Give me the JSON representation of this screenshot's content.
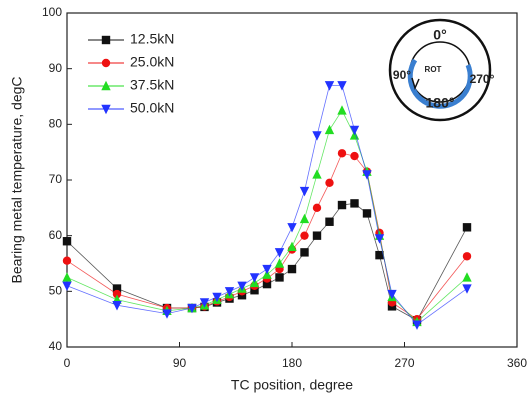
{
  "chart_data": {
    "type": "line",
    "xlabel": "TC position, degree",
    "ylabel": "Bearing metal temperature, degC",
    "x": [
      0,
      40,
      80,
      100,
      110,
      120,
      130,
      140,
      150,
      160,
      170,
      180,
      190,
      200,
      210,
      220,
      230,
      240,
      250,
      260,
      280,
      320
    ],
    "series": [
      {
        "name": "12.5kN",
        "color": "#111111",
        "marker": "square",
        "values": [
          59,
          50.5,
          47,
          47,
          47.2,
          48,
          48.7,
          49.3,
          50.2,
          51.3,
          52.5,
          54,
          57,
          60,
          62.5,
          65.5,
          65.8,
          64,
          56.5,
          47.3,
          44.8,
          61.5
        ]
      },
      {
        "name": "25.0kN",
        "color": "#ee1111",
        "marker": "circle",
        "values": [
          55.5,
          49.5,
          47,
          47,
          47.3,
          48.2,
          49,
          50,
          51,
          52.3,
          54,
          57.5,
          60,
          65,
          69.5,
          74.8,
          74.3,
          71.5,
          60.5,
          48,
          45,
          56.3
        ]
      },
      {
        "name": "37.5kN",
        "color": "#22dd22",
        "marker": "triangle-up",
        "values": [
          52.5,
          48.5,
          46.5,
          47,
          47.5,
          48.5,
          49.5,
          50.5,
          51.5,
          53,
          55,
          58,
          63,
          71,
          79,
          82.5,
          78,
          71.5,
          60,
          49,
          44.5,
          52.5
        ]
      },
      {
        "name": "50.0kN",
        "color": "#2233ff",
        "marker": "triangle-down",
        "values": [
          51,
          47.5,
          46,
          47,
          48,
          49,
          50,
          51,
          52.5,
          54,
          57,
          61.5,
          68,
          78,
          87,
          87,
          79,
          71,
          59.5,
          49.5,
          44,
          50.5
        ]
      }
    ],
    "xlim": [
      0,
      360
    ],
    "xticks": [
      0,
      90,
      180,
      270,
      360
    ],
    "ylim": [
      40,
      100
    ],
    "yticks": [
      40,
      50,
      60,
      70,
      80,
      90,
      100
    ],
    "legend": "upper left",
    "inset_labels": [
      "0°",
      "90°",
      "270°",
      "180°",
      "ROT"
    ]
  }
}
